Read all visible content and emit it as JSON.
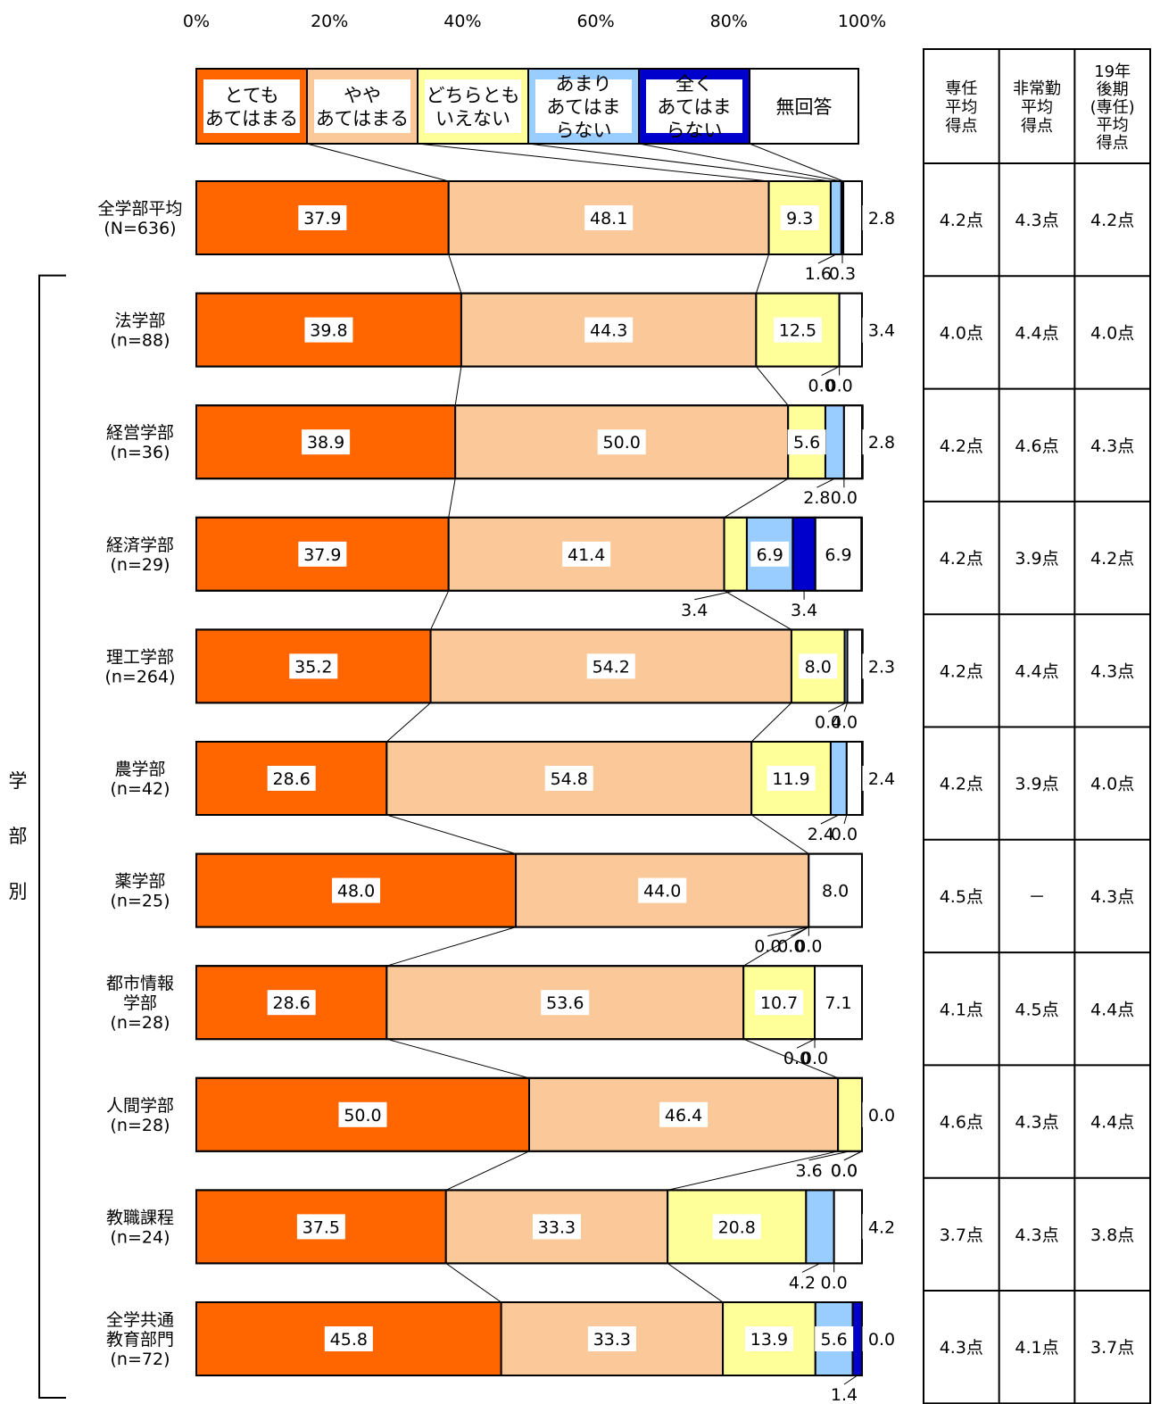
{
  "chart_data": {
    "type": "bar",
    "orientation": "horizontal",
    "stacked": true,
    "percent": true,
    "xlim": [
      0,
      100
    ],
    "x_ticks": [
      "0%",
      "20%",
      "40%",
      "60%",
      "80%",
      "100%"
    ],
    "legend_position": "top",
    "series": [
      {
        "name_lines": [
          "とても",
          "あてはまる"
        ],
        "color": "#ff6600"
      },
      {
        "name_lines": [
          "やや",
          "あてはまる"
        ],
        "color": "#fbc999"
      },
      {
        "name_lines": [
          "どちらとも",
          "いえない"
        ],
        "color": "#ffff99"
      },
      {
        "name_lines": [
          "あまり",
          "あてはま",
          "らない"
        ],
        "color": "#99ccff"
      },
      {
        "name_lines": [
          "全く",
          "あてはま",
          "らない"
        ],
        "color": "#0000cc"
      },
      {
        "name_lines": [
          "無回答"
        ],
        "color": "#ffffff"
      }
    ],
    "categories": [
      {
        "label_lines": [
          "全学部平均",
          "(N=636)"
        ],
        "values": [
          37.9,
          48.1,
          9.3,
          1.6,
          0.3,
          2.8
        ],
        "value_labels": [
          "37.9",
          "48.1",
          "9.3",
          "1.6",
          "0.3",
          "2.8"
        ]
      },
      {
        "label_lines": [
          "法学部",
          "(n=88)"
        ],
        "values": [
          39.8,
          44.3,
          12.5,
          0.0,
          0.0,
          3.4
        ],
        "value_labels": [
          "39.8",
          "44.3",
          "12.5",
          "0.0",
          "0.0",
          "3.4"
        ]
      },
      {
        "label_lines": [
          "経営学部",
          "(n=36)"
        ],
        "values": [
          38.9,
          50.0,
          5.6,
          2.8,
          0.0,
          2.8
        ],
        "value_labels": [
          "38.9",
          "50.0",
          "5.6",
          "2.8",
          "0.0",
          "2.8"
        ]
      },
      {
        "label_lines": [
          "経済学部",
          "(n=29)"
        ],
        "values": [
          37.9,
          41.4,
          3.4,
          6.9,
          3.4,
          6.9
        ],
        "value_labels": [
          "37.9",
          "41.4",
          "3.4",
          "6.9",
          "3.4",
          "6.9"
        ]
      },
      {
        "label_lines": [
          "理工学部",
          "(n=264)"
        ],
        "values": [
          35.2,
          54.2,
          8.0,
          0.4,
          0.0,
          2.3
        ],
        "value_labels": [
          "35.2",
          "54.2",
          "8.0",
          "0.4",
          "0.0",
          "2.3"
        ]
      },
      {
        "label_lines": [
          "農学部",
          "(n=42)"
        ],
        "values": [
          28.6,
          54.8,
          11.9,
          2.4,
          0.0,
          2.4
        ],
        "value_labels": [
          "28.6",
          "54.8",
          "11.9",
          "2.4",
          "0.0",
          "2.4"
        ]
      },
      {
        "label_lines": [
          "薬学部",
          "(n=25)"
        ],
        "values": [
          48.0,
          44.0,
          0.0,
          0.0,
          0.0,
          8.0
        ],
        "value_labels": [
          "48.0",
          "44.0",
          "0.0",
          "0.0",
          "0.0",
          "8.0"
        ]
      },
      {
        "label_lines": [
          "都市情報",
          "学部",
          "(n=28)"
        ],
        "values": [
          28.6,
          53.6,
          10.7,
          0.0,
          0.0,
          7.1
        ],
        "value_labels": [
          "28.6",
          "53.6",
          "10.7",
          "0.0",
          "0.0",
          "7.1"
        ]
      },
      {
        "label_lines": [
          "人間学部",
          "(n=28)"
        ],
        "values": [
          50.0,
          46.4,
          3.6,
          0.0,
          0.0,
          0.0
        ],
        "value_labels": [
          "50.0",
          "46.4",
          "3.6",
          "0.0",
          "0.0",
          "0.0"
        ]
      },
      {
        "label_lines": [
          "教職課程",
          "(n=24)"
        ],
        "values": [
          37.5,
          33.3,
          20.8,
          4.2,
          0.0,
          4.2
        ],
        "value_labels": [
          "37.5",
          "33.3",
          "20.8",
          "4.2",
          "0.0",
          "4.2"
        ]
      },
      {
        "label_lines": [
          "全学共通",
          "教育部門",
          "(n=72)"
        ],
        "values": [
          45.8,
          33.3,
          13.9,
          5.6,
          1.4,
          0.0
        ],
        "value_labels": [
          "45.8",
          "33.3",
          "13.9",
          "5.6",
          "1.4",
          "0.0"
        ]
      }
    ],
    "group_label_chars": [
      "学",
      "部",
      "別"
    ],
    "score_table": {
      "headers": [
        [
          "専任",
          "平均",
          "得点"
        ],
        [
          "非常勤",
          "平均",
          "得点"
        ],
        [
          "19年",
          "後期",
          "(専任)",
          "平均",
          "得点"
        ]
      ],
      "rows": [
        [
          "4.2点",
          "4.3点",
          "4.2点"
        ],
        [
          "4.0点",
          "4.4点",
          "4.0点"
        ],
        [
          "4.2点",
          "4.6点",
          "4.3点"
        ],
        [
          "4.2点",
          "3.9点",
          "4.2点"
        ],
        [
          "4.2点",
          "4.4点",
          "4.3点"
        ],
        [
          "4.2点",
          "3.9点",
          "4.0点"
        ],
        [
          "4.5点",
          "－",
          "4.3点"
        ],
        [
          "4.1点",
          "4.5点",
          "4.4点"
        ],
        [
          "4.6点",
          "4.3点",
          "4.4点"
        ],
        [
          "3.7点",
          "4.3点",
          "3.8点"
        ],
        [
          "4.3点",
          "4.1点",
          "3.7点"
        ]
      ]
    }
  }
}
